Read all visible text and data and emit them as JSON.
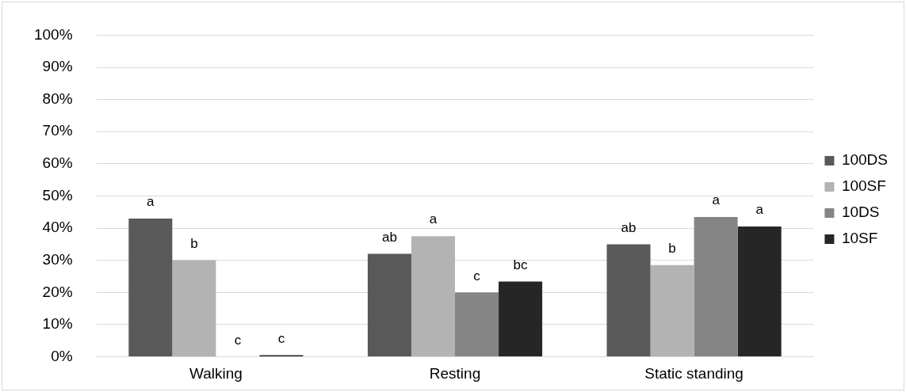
{
  "chart_data": {
    "type": "bar",
    "categories": [
      "Walking",
      "Resting",
      "Static standing"
    ],
    "series": [
      {
        "name": "100DS",
        "color": "#595959",
        "values": [
          43,
          32,
          35
        ]
      },
      {
        "name": "100SF",
        "color": "#b3b3b3",
        "values": [
          30,
          37.5,
          28.5
        ]
      },
      {
        "name": "10DS",
        "color": "#858585",
        "values": [
          0,
          20,
          43.5
        ]
      },
      {
        "name": "10SF",
        "color": "#262626",
        "values": [
          0.5,
          23.4,
          40.5
        ]
      }
    ],
    "ylim": [
      0,
      100
    ],
    "yticks": [
      {
        "value": 0,
        "label": "0%"
      },
      {
        "value": 10,
        "label": "10%"
      },
      {
        "value": 20,
        "label": "20%"
      },
      {
        "value": 30,
        "label": "30%"
      },
      {
        "value": 40,
        "label": "40%"
      },
      {
        "value": 50,
        "label": "50%"
      },
      {
        "value": 60,
        "label": "60%"
      },
      {
        "value": 70,
        "label": "70%"
      },
      {
        "value": 80,
        "label": "80%"
      },
      {
        "value": 90,
        "label": "90%"
      },
      {
        "value": 100,
        "label": "100%"
      }
    ],
    "grid": "y",
    "legend": "right",
    "annotations": [
      "a",
      "b",
      "c",
      "c",
      "ab",
      "a",
      "c",
      "bc",
      "ab",
      "b",
      "a",
      "a"
    ]
  }
}
